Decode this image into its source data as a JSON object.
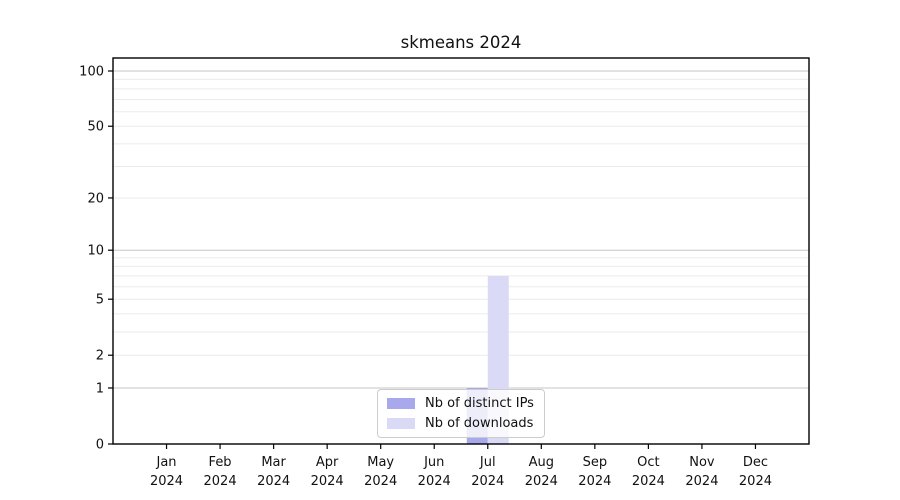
{
  "title": "skmeans 2024",
  "chart_data": {
    "type": "bar",
    "title": "skmeans 2024",
    "categories": [
      "Jan 2024",
      "Feb 2024",
      "Mar 2024",
      "Apr 2024",
      "May 2024",
      "Jun 2024",
      "Jul 2024",
      "Aug 2024",
      "Sep 2024",
      "Oct 2024",
      "Nov 2024",
      "Dec 2024"
    ],
    "series": [
      {
        "name": "Nb of distinct IPs",
        "color": "#a8a8ec",
        "values": [
          0,
          0,
          0,
          0,
          0,
          0,
          1,
          0,
          0,
          0,
          0,
          0
        ]
      },
      {
        "name": "Nb of downloads",
        "color": "#dadaf6",
        "values": [
          0,
          0,
          0,
          0,
          0,
          0,
          7,
          0,
          0,
          0,
          0,
          0
        ]
      }
    ],
    "xlabel": "",
    "ylabel": "",
    "yscale": "log1p",
    "yticks": [
      0,
      1,
      2,
      5,
      10,
      20,
      50,
      100
    ],
    "ylim": [
      0,
      118
    ],
    "grid": {
      "major": [
        1,
        10,
        100
      ],
      "minor": [
        2,
        3,
        4,
        5,
        6,
        7,
        8,
        9,
        20,
        30,
        40,
        50,
        60,
        70,
        80,
        90
      ],
      "major_color": "#c6c6c6",
      "minor_color": "#ebebeb"
    },
    "legend_position": "lower center",
    "axis_color": "#000000",
    "background_color": "#ffffff"
  }
}
